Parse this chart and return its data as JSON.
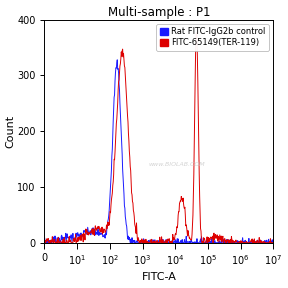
{
  "title": "Multi-sample : P1",
  "xlabel": "FITC-A",
  "ylabel": "Count",
  "ylim": [
    0,
    400
  ],
  "yticks": [
    0,
    100,
    200,
    300,
    400
  ],
  "legend": [
    "Rat FITC-IgG2b control",
    "FITC-65149(TER-119)"
  ],
  "blue_color": "#1a1aff",
  "red_color": "#dd0000",
  "bg_color": "#ffffff",
  "watermark": "www.BIOLAB.COM",
  "title_fontsize": 8.5,
  "axis_fontsize": 8,
  "tick_fontsize": 7,
  "legend_fontsize": 6
}
